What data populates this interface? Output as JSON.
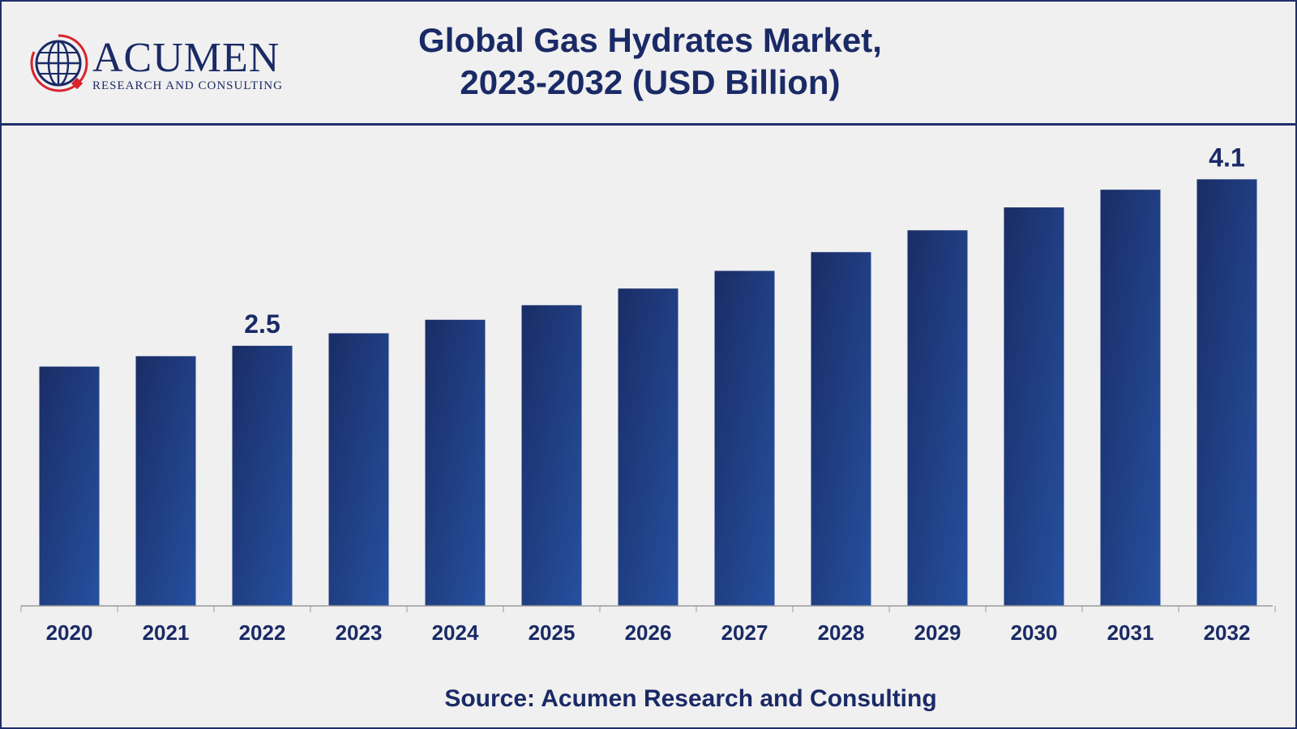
{
  "header": {
    "title_line1": "Global Gas Hydrates Market,",
    "title_line2": "2023-2032 (USD Billion)"
  },
  "logo": {
    "brand": "ACUMEN",
    "tagline": "RESEARCH AND CONSULTING",
    "icon": "globe-icon"
  },
  "footer": {
    "source": "Source: Acumen Research and Consulting"
  },
  "colors": {
    "bar_dark": "#1a2d66",
    "bar_light": "#26509f",
    "text": "#1a2a66"
  },
  "chart_data": {
    "type": "bar",
    "title": "Global Gas Hydrates Market, 2023-2032 (USD Billion)",
    "xlabel": "",
    "ylabel": "",
    "categories": [
      "2020",
      "2021",
      "2022",
      "2023",
      "2024",
      "2025",
      "2026",
      "2027",
      "2028",
      "2029",
      "2030",
      "2031",
      "2032"
    ],
    "values": [
      2.3,
      2.4,
      2.5,
      2.62,
      2.75,
      2.89,
      3.05,
      3.22,
      3.4,
      3.61,
      3.83,
      4.0,
      4.1
    ],
    "data_labels": [
      {
        "index": 2,
        "text": "2.5"
      },
      {
        "index": 12,
        "text": "4.1"
      }
    ],
    "ylim": [
      0,
      4.64
    ],
    "grid": false,
    "legend": "none"
  }
}
